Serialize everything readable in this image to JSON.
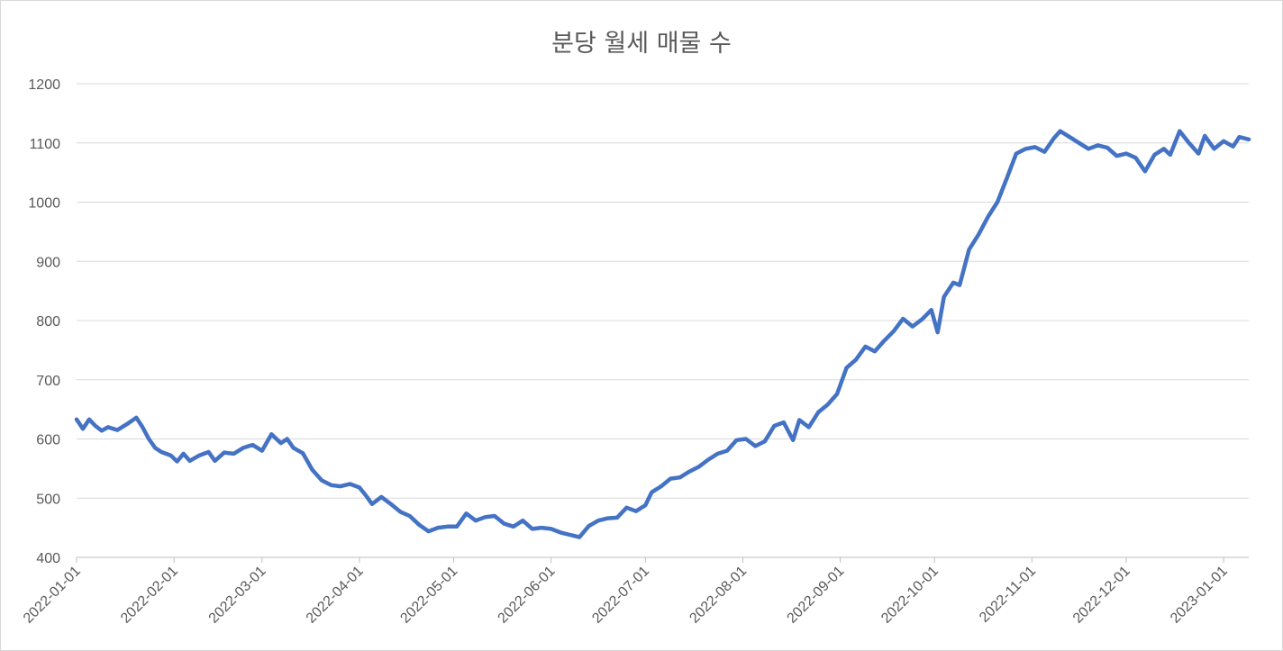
{
  "chart_data": {
    "type": "line",
    "title": "분당 월세 매물 수",
    "xlabel": "",
    "ylabel": "",
    "ylim": [
      400,
      1200
    ],
    "y_ticks": [
      "400",
      "500",
      "600",
      "700",
      "800",
      "900",
      "1000",
      "1100",
      "1200"
    ],
    "x_ticks": [
      "2022-01-01",
      "2022-02-01",
      "2022-03-01",
      "2022-04-01",
      "2022-05-01",
      "2022-06-01",
      "2022-07-01",
      "2022-08-01",
      "2022-09-01",
      "2022-10-01",
      "2022-11-01",
      "2022-12-01",
      "2023-01-01"
    ],
    "x_range": [
      "2022-01-01",
      "2023-01-09"
    ],
    "grid": true,
    "legend": "none",
    "series": [
      {
        "color": "#4472c4",
        "points": [
          [
            "2022-01-01",
            633
          ],
          [
            "2022-01-03",
            617
          ],
          [
            "2022-01-05",
            633
          ],
          [
            "2022-01-07",
            622
          ],
          [
            "2022-01-09",
            614
          ],
          [
            "2022-01-11",
            620
          ],
          [
            "2022-01-14",
            615
          ],
          [
            "2022-01-17",
            625
          ],
          [
            "2022-01-20",
            636
          ],
          [
            "2022-01-22",
            620
          ],
          [
            "2022-01-24",
            600
          ],
          [
            "2022-01-26",
            585
          ],
          [
            "2022-01-28",
            578
          ],
          [
            "2022-01-31",
            572
          ],
          [
            "2022-02-02",
            562
          ],
          [
            "2022-02-04",
            575
          ],
          [
            "2022-02-06",
            563
          ],
          [
            "2022-02-09",
            572
          ],
          [
            "2022-02-12",
            578
          ],
          [
            "2022-02-14",
            563
          ],
          [
            "2022-02-17",
            577
          ],
          [
            "2022-02-20",
            575
          ],
          [
            "2022-02-23",
            585
          ],
          [
            "2022-02-26",
            590
          ],
          [
            "2022-03-01",
            580
          ],
          [
            "2022-03-04",
            608
          ],
          [
            "2022-03-07",
            593
          ],
          [
            "2022-03-09",
            600
          ],
          [
            "2022-03-11",
            585
          ],
          [
            "2022-03-14",
            576
          ],
          [
            "2022-03-17",
            548
          ],
          [
            "2022-03-20",
            530
          ],
          [
            "2022-03-23",
            522
          ],
          [
            "2022-03-26",
            520
          ],
          [
            "2022-03-29",
            524
          ],
          [
            "2022-04-01",
            518
          ],
          [
            "2022-04-03",
            505
          ],
          [
            "2022-04-05",
            490
          ],
          [
            "2022-04-08",
            502
          ],
          [
            "2022-04-11",
            490
          ],
          [
            "2022-04-14",
            477
          ],
          [
            "2022-04-17",
            470
          ],
          [
            "2022-04-20",
            455
          ],
          [
            "2022-04-23",
            444
          ],
          [
            "2022-04-26",
            450
          ],
          [
            "2022-04-29",
            452
          ],
          [
            "2022-05-02",
            452
          ],
          [
            "2022-05-05",
            474
          ],
          [
            "2022-05-08",
            462
          ],
          [
            "2022-05-11",
            468
          ],
          [
            "2022-05-14",
            470
          ],
          [
            "2022-05-17",
            457
          ],
          [
            "2022-05-20",
            452
          ],
          [
            "2022-05-23",
            462
          ],
          [
            "2022-05-26",
            448
          ],
          [
            "2022-05-29",
            450
          ],
          [
            "2022-06-01",
            448
          ],
          [
            "2022-06-04",
            442
          ],
          [
            "2022-06-07",
            438
          ],
          [
            "2022-06-10",
            434
          ],
          [
            "2022-06-13",
            453
          ],
          [
            "2022-06-16",
            462
          ],
          [
            "2022-06-19",
            466
          ],
          [
            "2022-06-22",
            467
          ],
          [
            "2022-06-25",
            484
          ],
          [
            "2022-06-28",
            478
          ],
          [
            "2022-07-01",
            488
          ],
          [
            "2022-07-03",
            510
          ],
          [
            "2022-07-06",
            520
          ],
          [
            "2022-07-09",
            533
          ],
          [
            "2022-07-12",
            535
          ],
          [
            "2022-07-15",
            545
          ],
          [
            "2022-07-18",
            553
          ],
          [
            "2022-07-21",
            565
          ],
          [
            "2022-07-24",
            575
          ],
          [
            "2022-07-27",
            580
          ],
          [
            "2022-07-30",
            598
          ],
          [
            "2022-08-02",
            600
          ],
          [
            "2022-08-05",
            588
          ],
          [
            "2022-08-08",
            596
          ],
          [
            "2022-08-11",
            622
          ],
          [
            "2022-08-14",
            628
          ],
          [
            "2022-08-17",
            598
          ],
          [
            "2022-08-19",
            632
          ],
          [
            "2022-08-22",
            620
          ],
          [
            "2022-08-25",
            645
          ],
          [
            "2022-08-28",
            658
          ],
          [
            "2022-08-31",
            676
          ],
          [
            "2022-09-03",
            720
          ],
          [
            "2022-09-06",
            734
          ],
          [
            "2022-09-09",
            756
          ],
          [
            "2022-09-12",
            748
          ],
          [
            "2022-09-15",
            766
          ],
          [
            "2022-09-18",
            782
          ],
          [
            "2022-09-21",
            803
          ],
          [
            "2022-09-24",
            790
          ],
          [
            "2022-09-27",
            802
          ],
          [
            "2022-09-30",
            818
          ],
          [
            "2022-10-02",
            780
          ],
          [
            "2022-10-04",
            840
          ],
          [
            "2022-10-07",
            864
          ],
          [
            "2022-10-09",
            860
          ],
          [
            "2022-10-12",
            920
          ],
          [
            "2022-10-15",
            945
          ],
          [
            "2022-10-18",
            975
          ],
          [
            "2022-10-21",
            1000
          ],
          [
            "2022-10-24",
            1040
          ],
          [
            "2022-10-27",
            1082
          ],
          [
            "2022-10-30",
            1090
          ],
          [
            "2022-11-02",
            1093
          ],
          [
            "2022-11-05",
            1085
          ],
          [
            "2022-11-08",
            1108
          ],
          [
            "2022-11-10",
            1120
          ],
          [
            "2022-11-13",
            1110
          ],
          [
            "2022-11-16",
            1100
          ],
          [
            "2022-11-19",
            1090
          ],
          [
            "2022-11-22",
            1096
          ],
          [
            "2022-11-25",
            1092
          ],
          [
            "2022-11-28",
            1078
          ],
          [
            "2022-12-01",
            1082
          ],
          [
            "2022-12-04",
            1075
          ],
          [
            "2022-12-07",
            1052
          ],
          [
            "2022-12-10",
            1080
          ],
          [
            "2022-12-13",
            1090
          ],
          [
            "2022-12-15",
            1080
          ],
          [
            "2022-12-18",
            1120
          ],
          [
            "2022-12-21",
            1100
          ],
          [
            "2022-12-24",
            1082
          ],
          [
            "2022-12-26",
            1112
          ],
          [
            "2022-12-29",
            1090
          ],
          [
            "2023-01-01",
            1103
          ],
          [
            "2023-01-04",
            1094
          ],
          [
            "2023-01-06",
            1110
          ],
          [
            "2023-01-09",
            1106
          ]
        ]
      }
    ]
  }
}
